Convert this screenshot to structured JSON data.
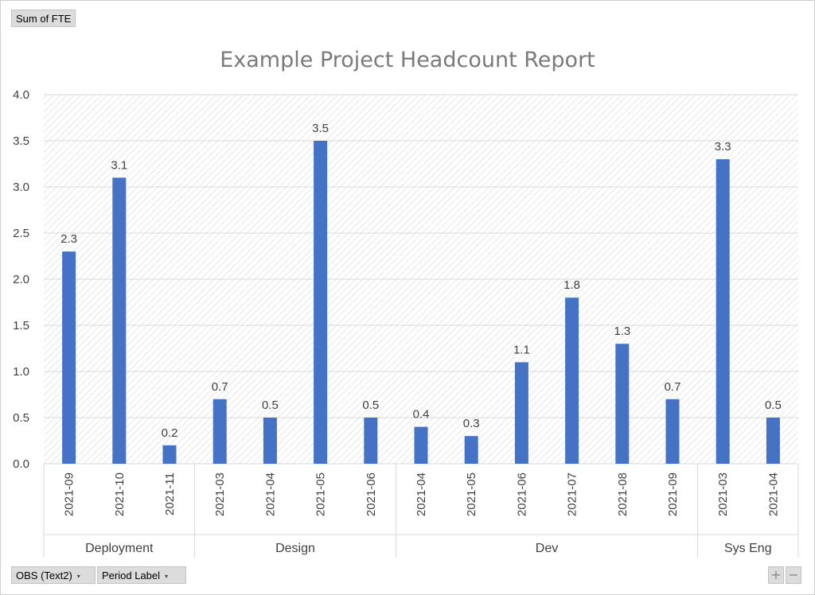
{
  "chart_data": {
    "type": "bar",
    "title": "Example Project Headcount Report",
    "ylim": [
      0,
      4.0
    ],
    "yticks": [
      "0.0",
      "0.5",
      "1.0",
      "1.5",
      "2.0",
      "2.5",
      "3.0",
      "3.5",
      "4.0"
    ],
    "grid": true,
    "bar_color": "#4472C4",
    "groups": [
      {
        "name": "Deployment",
        "categories": [
          "2021-09",
          "2021-10",
          "2021-11"
        ],
        "values": [
          2.3,
          3.1,
          0.2
        ]
      },
      {
        "name": "Design",
        "categories": [
          "2021-03",
          "2021-04",
          "2021-05",
          "2021-06"
        ],
        "values": [
          0.7,
          0.5,
          3.5,
          0.5
        ]
      },
      {
        "name": "Dev",
        "categories": [
          "2021-04",
          "2021-05",
          "2021-06",
          "2021-07",
          "2021-08",
          "2021-09"
        ],
        "values": [
          0.4,
          0.3,
          1.1,
          1.8,
          1.3,
          0.7
        ]
      },
      {
        "name": "Sys Eng",
        "categories": [
          "2021-03",
          "2021-04"
        ],
        "values": [
          3.3,
          0.5
        ]
      }
    ],
    "data_labels": [
      "2.3",
      "3.1",
      "0.2",
      "0.7",
      "0.5",
      "3.5",
      "0.5",
      "0.4",
      "0.3",
      "1.1",
      "1.8",
      "1.3",
      "0.7",
      "3.3",
      "0.5"
    ]
  },
  "fields": {
    "value_field": "Sum of FTE",
    "axis_field_1": "OBS (Text2)",
    "axis_field_2": "Period Label",
    "dropdown_glyph": "▾"
  },
  "controls": {
    "zoom_in": "+",
    "zoom_out": "−"
  }
}
